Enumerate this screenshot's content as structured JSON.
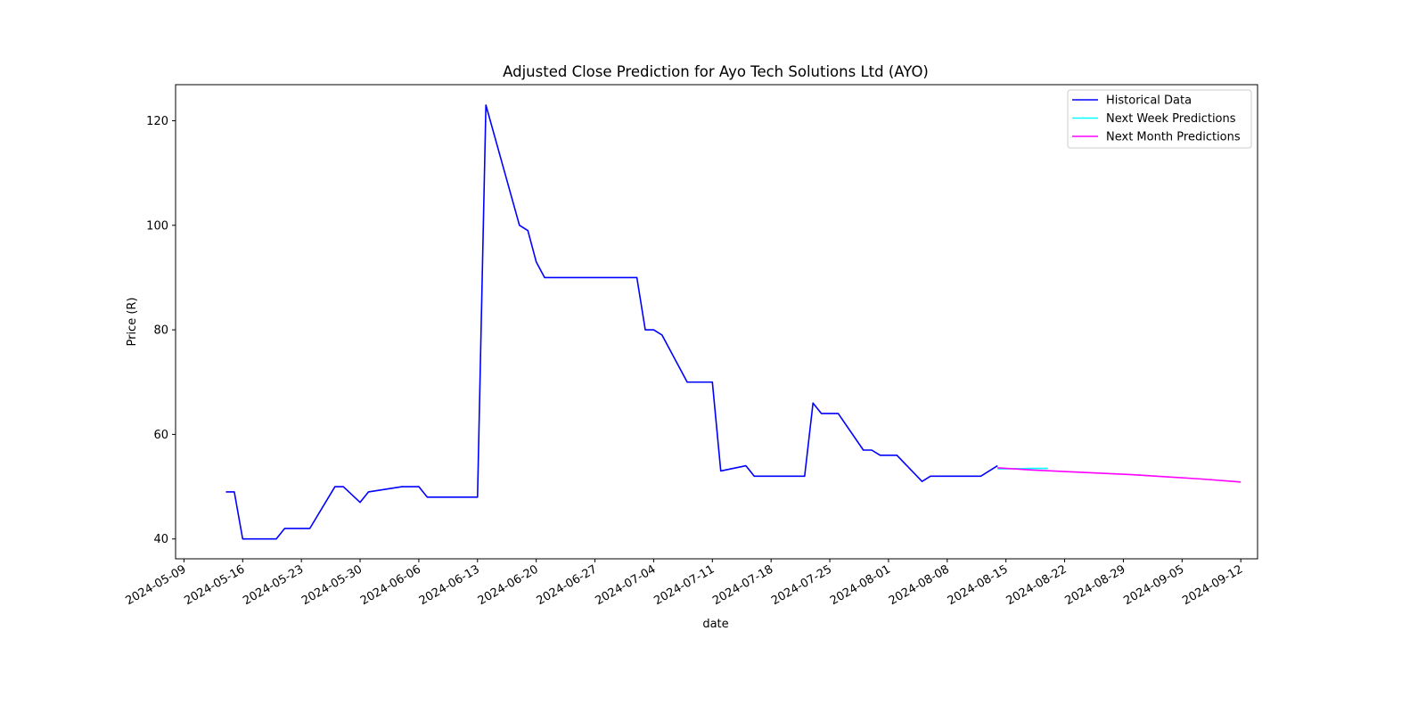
{
  "chart_data": {
    "type": "line",
    "title": "Adjusted Close Prediction for Ayo Tech Solutions Ltd (AYO)",
    "xlabel": "date",
    "ylabel": "Price (R)",
    "ylim": [
      36.2,
      126.9
    ],
    "xlim": [
      "2024-05-08",
      "2024-09-14"
    ],
    "grid": false,
    "legend_position": "top-right",
    "x_ticks": [
      "2024-05-09",
      "2024-05-16",
      "2024-05-23",
      "2024-05-30",
      "2024-06-06",
      "2024-06-13",
      "2024-06-20",
      "2024-06-27",
      "2024-07-04",
      "2024-07-11",
      "2024-07-18",
      "2024-07-25",
      "2024-08-01",
      "2024-08-08",
      "2024-08-15",
      "2024-08-22",
      "2024-08-29",
      "2024-09-05",
      "2024-09-12"
    ],
    "y_ticks": [
      40,
      60,
      80,
      100,
      120
    ],
    "series": [
      {
        "name": "Historical Data",
        "color": "#0000ff",
        "points": [
          [
            "2024-05-14",
            49
          ],
          [
            "2024-05-15",
            49
          ],
          [
            "2024-05-16",
            40
          ],
          [
            "2024-05-20",
            40
          ],
          [
            "2024-05-21",
            42
          ],
          [
            "2024-05-24",
            42
          ],
          [
            "2024-05-27",
            50
          ],
          [
            "2024-05-28",
            50
          ],
          [
            "2024-05-30",
            47
          ],
          [
            "2024-05-31",
            49
          ],
          [
            "2024-06-04",
            50
          ],
          [
            "2024-06-06",
            50
          ],
          [
            "2024-06-07",
            48
          ],
          [
            "2024-06-12",
            48
          ],
          [
            "2024-06-13",
            48
          ],
          [
            "2024-06-14",
            123
          ],
          [
            "2024-06-18",
            100
          ],
          [
            "2024-06-19",
            99
          ],
          [
            "2024-06-20",
            93
          ],
          [
            "2024-06-21",
            90
          ],
          [
            "2024-06-28",
            90
          ],
          [
            "2024-07-02",
            90
          ],
          [
            "2024-07-03",
            80
          ],
          [
            "2024-07-04",
            80
          ],
          [
            "2024-07-05",
            79
          ],
          [
            "2024-07-08",
            70
          ],
          [
            "2024-07-10",
            70
          ],
          [
            "2024-07-11",
            70
          ],
          [
            "2024-07-12",
            53
          ],
          [
            "2024-07-15",
            54
          ],
          [
            "2024-07-16",
            52
          ],
          [
            "2024-07-22",
            52
          ],
          [
            "2024-07-23",
            66
          ],
          [
            "2024-07-24",
            64
          ],
          [
            "2024-07-26",
            64
          ],
          [
            "2024-07-29",
            57
          ],
          [
            "2024-07-30",
            57
          ],
          [
            "2024-07-31",
            56
          ],
          [
            "2024-08-02",
            56
          ],
          [
            "2024-08-05",
            51
          ],
          [
            "2024-08-06",
            52
          ],
          [
            "2024-08-12",
            52
          ],
          [
            "2024-08-14",
            54
          ]
        ]
      },
      {
        "name": "Next Week Predictions",
        "color": "#00ffff",
        "points": [
          [
            "2024-08-14",
            53.4
          ],
          [
            "2024-08-15",
            53.4
          ],
          [
            "2024-08-16",
            53.45
          ],
          [
            "2024-08-17",
            53.45
          ],
          [
            "2024-08-18",
            53.5
          ],
          [
            "2024-08-19",
            53.5
          ],
          [
            "2024-08-20",
            53.5
          ]
        ]
      },
      {
        "name": "Next Month Predictions",
        "color": "#ff00ff",
        "points": [
          [
            "2024-08-14",
            53.6
          ],
          [
            "2024-08-18",
            53.2
          ],
          [
            "2024-08-22",
            52.9
          ],
          [
            "2024-08-26",
            52.6
          ],
          [
            "2024-08-30",
            52.3
          ],
          [
            "2024-09-03",
            51.9
          ],
          [
            "2024-09-07",
            51.5
          ],
          [
            "2024-09-12",
            50.9
          ]
        ]
      }
    ]
  }
}
